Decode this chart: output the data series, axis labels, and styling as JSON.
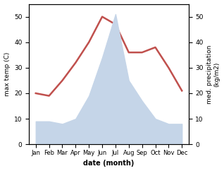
{
  "months": [
    "Jan",
    "Feb",
    "Mar",
    "Apr",
    "May",
    "Jun",
    "Jul",
    "Aug",
    "Sep",
    "Oct",
    "Nov",
    "Dec"
  ],
  "temperature": [
    20,
    19,
    25,
    32,
    40,
    50,
    47,
    36,
    36,
    38,
    30,
    21
  ],
  "precipitation": [
    9,
    9,
    8,
    10,
    19,
    34,
    51,
    25,
    17,
    10,
    8,
    8
  ],
  "temp_color": "#c0504d",
  "precip_fill_color": "#c5d5e8",
  "xlabel": "date (month)",
  "ylabel_left": "max temp (C)",
  "ylabel_right": "med. precipitation\n(kg/m2)",
  "ylim_left": [
    0,
    55
  ],
  "ylim_right": [
    0,
    55
  ],
  "yticks_left": [
    0,
    10,
    20,
    30,
    40,
    50
  ],
  "yticks_right": [
    0,
    10,
    20,
    30,
    40,
    50
  ],
  "temp_linewidth": 1.8,
  "bg_color": "#ffffff",
  "figsize": [
    3.18,
    2.42
  ],
  "dpi": 100
}
